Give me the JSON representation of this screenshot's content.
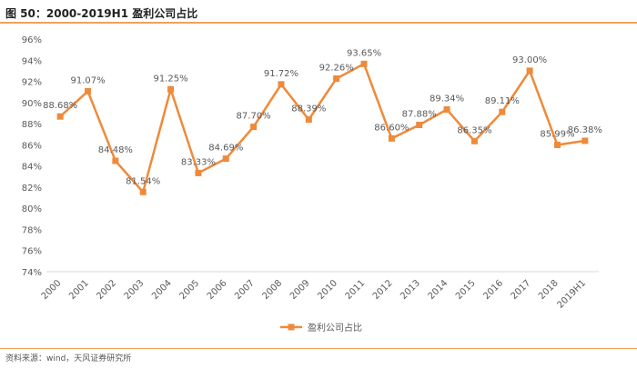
{
  "figure": {
    "title": "图 50：2000-2019H1 盈利公司占比",
    "source": "资料来源：wind，天风证券研究所"
  },
  "colors": {
    "series": "#ef8a3a",
    "rule": "#f0a15c",
    "axis": "#d9d9d9",
    "text": "#595959"
  },
  "chart_data": {
    "type": "line",
    "title": "",
    "xlabel": "",
    "ylabel": "",
    "categories": [
      "2000",
      "2001",
      "2002",
      "2003",
      "2004",
      "2005",
      "2006",
      "2007",
      "2008",
      "2009",
      "2010",
      "2011",
      "2012",
      "2013",
      "2014",
      "2015",
      "2016",
      "2017",
      "2018",
      "2019H1"
    ],
    "series": [
      {
        "name": "盈利公司占比",
        "values": [
          88.68,
          91.07,
          84.48,
          81.54,
          91.25,
          83.33,
          84.69,
          87.7,
          91.72,
          88.39,
          92.26,
          93.65,
          86.6,
          87.88,
          89.34,
          86.35,
          89.11,
          93.0,
          85.99,
          86.38
        ],
        "labels": [
          "88.68%",
          "91.07%",
          "84.48%",
          "81.54%",
          "91.25%",
          "83.33%",
          "84.69%",
          "87.70%",
          "91.72%",
          "88.39%",
          "92.26%",
          "93.65%",
          "86.60%",
          "87.88%",
          "89.34%",
          "86.35%",
          "89.11%",
          "93.00%",
          "85.99%",
          "86.38%"
        ]
      }
    ],
    "ylim": [
      74,
      96
    ],
    "yticks": [
      74,
      76,
      78,
      80,
      82,
      84,
      86,
      88,
      90,
      92,
      94,
      96
    ],
    "ytick_labels": [
      "74%",
      "76%",
      "78%",
      "80%",
      "82%",
      "84%",
      "86%",
      "88%",
      "90%",
      "92%",
      "94%",
      "96%"
    ],
    "grid": false,
    "legend": "bottom-center"
  }
}
